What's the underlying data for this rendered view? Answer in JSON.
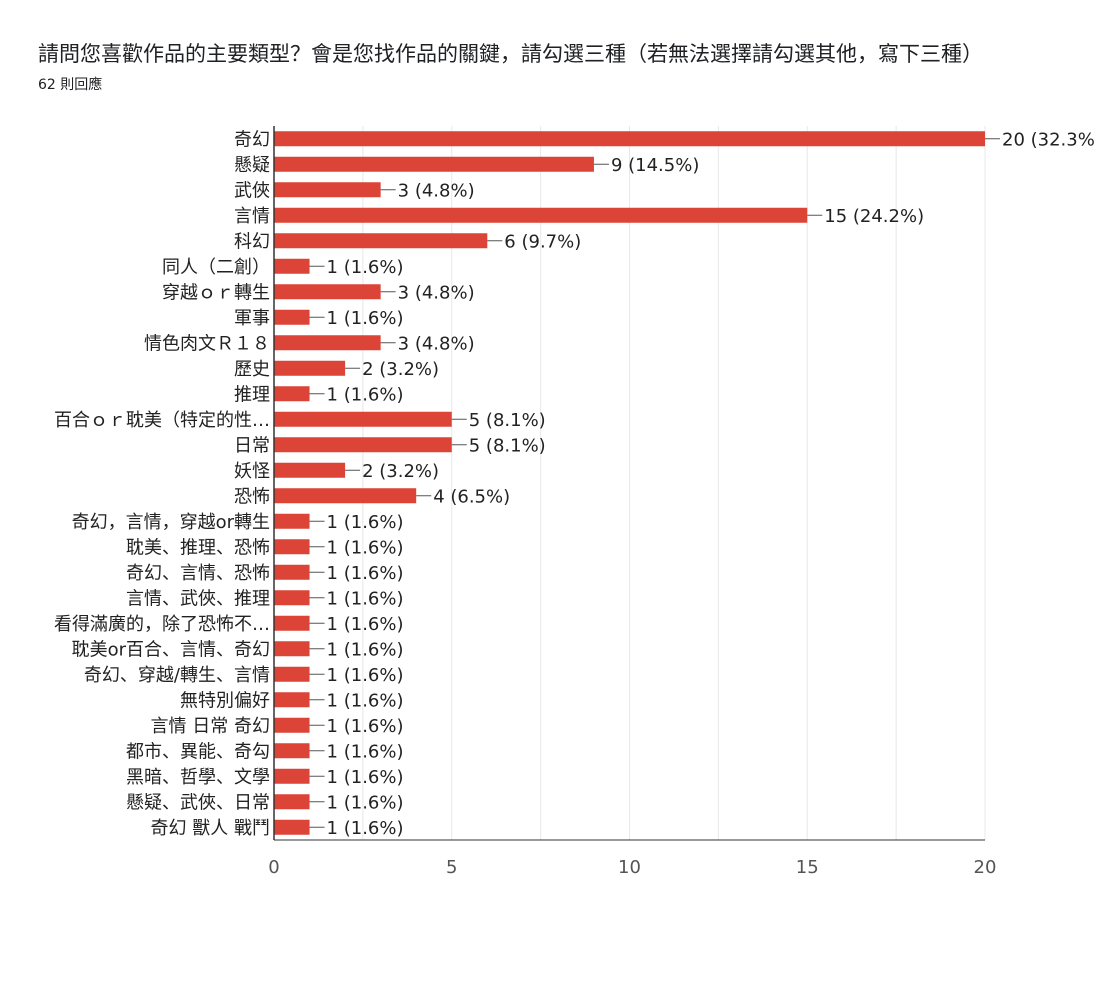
{
  "title": "請問您喜歡作品的主要類型？會是您找作品的關鍵，請勾選三種（若無法選擇請勾選其他，寫下三種）",
  "subtitle": "62 則回應",
  "colors": {
    "bar": "#db4437",
    "grid": "#e8e8e8",
    "axis": "#333333",
    "text": "#222222"
  },
  "chart_data": {
    "type": "bar",
    "orientation": "horizontal",
    "categories": [
      "奇幻",
      "懸疑",
      "武俠",
      "言情",
      "科幻",
      "同人（二創）",
      "穿越ｏｒ轉生",
      "軍事",
      "情色肉文Ｒ１８",
      "歷史",
      "推理",
      "百合ｏｒ耽美（特定的性…",
      "日常",
      "妖怪",
      "恐怖",
      "奇幻，言情，穿越or轉生",
      "耽美、推理、恐怖",
      "奇幻、言情、恐怖",
      "言情、武俠、推理",
      "看得滿廣的，除了恐怖不…",
      "耽美or百合、言情、奇幻",
      "奇幻、穿越/轉生、言情",
      "無特別偏好",
      "言情 日常 奇幻",
      "都市、異能、奇勾",
      "黑暗、哲學、文學",
      "懸疑、武俠、日常",
      "奇幻 獸人 戰鬥"
    ],
    "values": [
      20,
      9,
      3,
      15,
      6,
      1,
      3,
      1,
      3,
      2,
      1,
      5,
      5,
      2,
      4,
      1,
      1,
      1,
      1,
      1,
      1,
      1,
      1,
      1,
      1,
      1,
      1,
      1
    ],
    "data_labels": [
      "20 (32.3%",
      "9 (14.5%)",
      "3 (4.8%)",
      "15 (24.2%)",
      "6 (9.7%)",
      "1 (1.6%)",
      "3 (4.8%)",
      "1 (1.6%)",
      "3 (4.8%)",
      "2 (3.2%)",
      "1 (1.6%)",
      "5 (8.1%)",
      "5 (8.1%)",
      "2 (3.2%)",
      "4 (6.5%)",
      "1 (1.6%)",
      "1 (1.6%)",
      "1 (1.6%)",
      "1 (1.6%)",
      "1 (1.6%)",
      "1 (1.6%)",
      "1 (1.6%)",
      "1 (1.6%)",
      "1 (1.6%)",
      "1 (1.6%)",
      "1 (1.6%)",
      "1 (1.6%)",
      "1 (1.6%)"
    ],
    "x_ticks": [
      0,
      5,
      10,
      15,
      20
    ],
    "xlim": [
      0,
      20
    ],
    "grid": true,
    "legend": "none"
  }
}
